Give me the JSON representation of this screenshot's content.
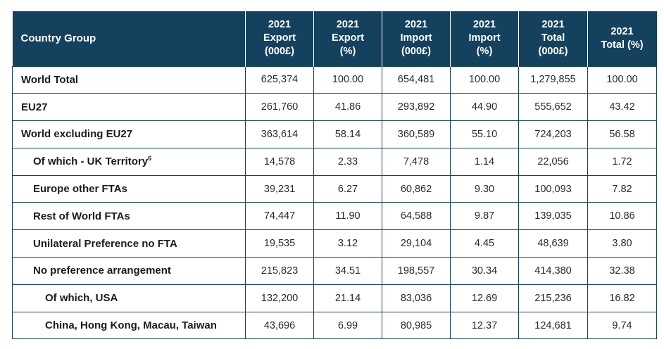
{
  "table": {
    "headers": [
      {
        "lines": [
          "Country Group"
        ]
      },
      {
        "lines": [
          "2021",
          "Export",
          "(000£)"
        ]
      },
      {
        "lines": [
          "2021",
          "Export",
          "(%)"
        ]
      },
      {
        "lines": [
          "2021",
          "Import",
          "(000£)"
        ]
      },
      {
        "lines": [
          "2021",
          "Import",
          "(%)"
        ]
      },
      {
        "lines": [
          "2021",
          "Total",
          "(000£)"
        ]
      },
      {
        "lines": [
          "2021",
          "Total (%)"
        ]
      }
    ],
    "rows": [
      {
        "label": "World Total",
        "sup": "",
        "level": 0,
        "values": [
          "625,374",
          "100.00",
          "654,481",
          "100.00",
          "1,279,855",
          "100.00"
        ]
      },
      {
        "label": "EU27",
        "sup": "",
        "level": 0,
        "values": [
          "261,760",
          "41.86",
          "293,892",
          "44.90",
          "555,652",
          "43.42"
        ]
      },
      {
        "label": "World excluding EU27",
        "sup": "",
        "level": 0,
        "values": [
          "363,614",
          "58.14",
          "360,589",
          "55.10",
          "724,203",
          "56.58"
        ]
      },
      {
        "label": "Of which - UK Territory",
        "sup": "6",
        "level": 1,
        "values": [
          "14,578",
          "2.33",
          "7,478",
          "1.14",
          "22,056",
          "1.72"
        ]
      },
      {
        "label": "Europe other FTAs",
        "sup": "",
        "level": 1,
        "values": [
          "39,231",
          "6.27",
          "60,862",
          "9.30",
          "100,093",
          "7.82"
        ]
      },
      {
        "label": "Rest of World FTAs",
        "sup": "",
        "level": 1,
        "values": [
          "74,447",
          "11.90",
          "64,588",
          "9.87",
          "139,035",
          "10.86"
        ]
      },
      {
        "label": "Unilateral Preference no FTA",
        "sup": "",
        "level": 1,
        "values": [
          "19,535",
          "3.12",
          "29,104",
          "4.45",
          "48,639",
          "3.80"
        ]
      },
      {
        "label": "No preference arrangement",
        "sup": "",
        "level": 1,
        "values": [
          "215,823",
          "34.51",
          "198,557",
          "30.34",
          "414,380",
          "32.38"
        ]
      },
      {
        "label": "Of which, USA",
        "sup": "",
        "level": 2,
        "values": [
          "132,200",
          "21.14",
          "83,036",
          "12.69",
          "215,236",
          "16.82"
        ]
      },
      {
        "label": "China, Hong Kong, Macau, Taiwan",
        "sup": "",
        "level": 2,
        "values": [
          "43,696",
          "6.99",
          "80,985",
          "12.37",
          "124,681",
          "9.74"
        ]
      }
    ]
  },
  "colors": {
    "header_bg": "#14415e",
    "header_text": "#ffffff",
    "border": "#14415e"
  }
}
